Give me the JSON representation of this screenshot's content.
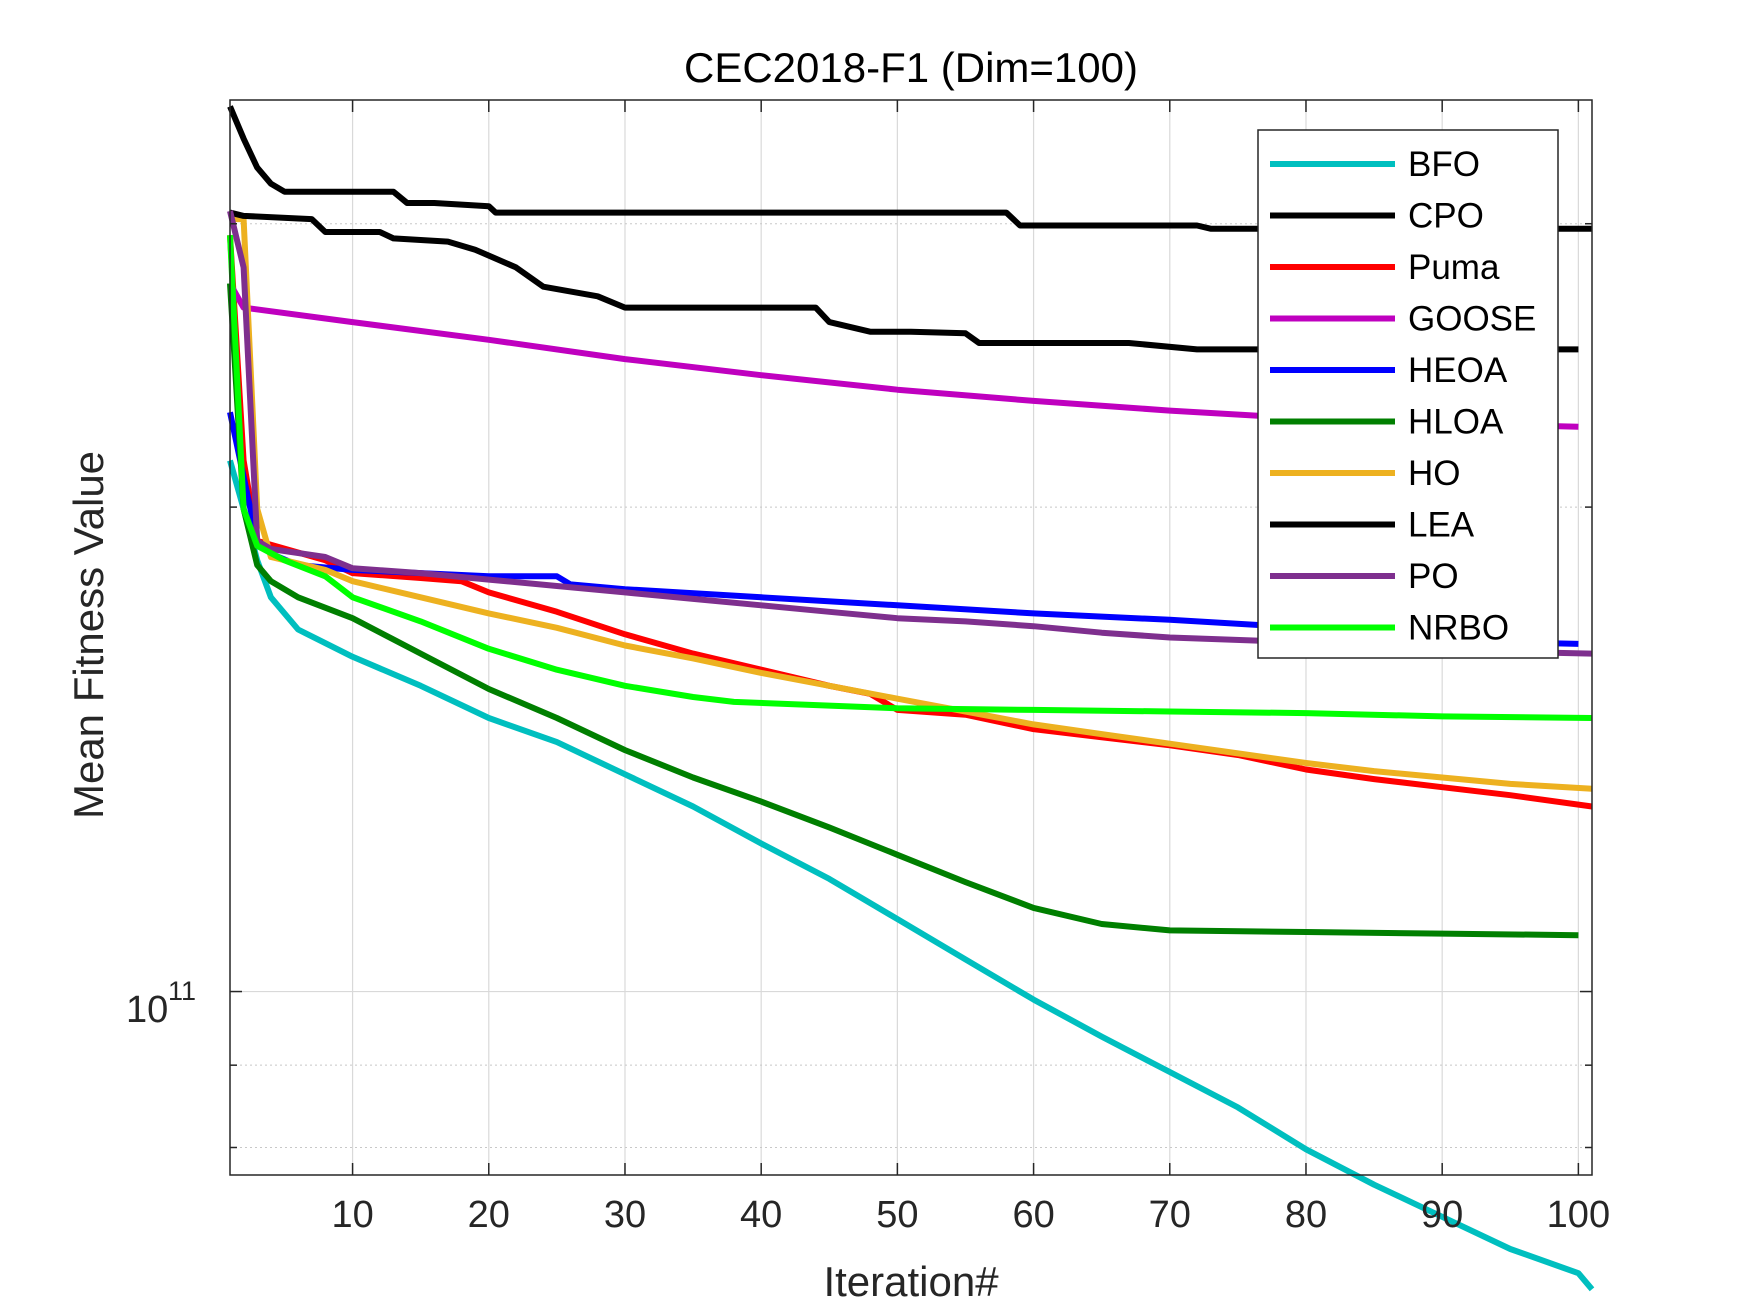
{
  "chart_data": {
    "type": "line",
    "title": "CEC2018-F1 (Dim=100)",
    "xlabel": "Iteration#",
    "ylabel": "Mean Fitness Value",
    "yscale": "log",
    "xlim": [
      1,
      101
    ],
    "ylim_log10": [
      10.886,
      11.554
    ],
    "x_ticks": [
      10,
      20,
      30,
      40,
      50,
      60,
      70,
      80,
      90,
      100
    ],
    "x_tick_labels": [
      "10",
      "20",
      "30",
      "40",
      "50",
      "60",
      "70",
      "80",
      "90",
      "100"
    ],
    "y_tick_base": "10",
    "y_tick_exponent": "11",
    "grid": true,
    "legend_position": "top-right",
    "series": [
      {
        "name": "BFO",
        "color": "#00BFBF",
        "points": [
          [
            1,
            11.33
          ],
          [
            2,
            11.3
          ],
          [
            3,
            11.268
          ],
          [
            4,
            11.245
          ],
          [
            6,
            11.225
          ],
          [
            10,
            11.208
          ],
          [
            15,
            11.19
          ],
          [
            20,
            11.17
          ],
          [
            25,
            11.155
          ],
          [
            30,
            11.135
          ],
          [
            35,
            11.115
          ],
          [
            40,
            11.092
          ],
          [
            45,
            11.07
          ],
          [
            50,
            11.045
          ],
          [
            55,
            11.02
          ],
          [
            60,
            10.995
          ],
          [
            65,
            10.972
          ],
          [
            70,
            10.95
          ],
          [
            75,
            10.928
          ],
          [
            80,
            10.902
          ],
          [
            85,
            10.88
          ],
          [
            90,
            10.86
          ],
          [
            95,
            10.84
          ],
          [
            100,
            10.825
          ],
          [
            101,
            10.815
          ]
        ]
      },
      {
        "name": "CPO",
        "color": "#000000",
        "points": [
          [
            1,
            11.55
          ],
          [
            2,
            11.53
          ],
          [
            3,
            11.512
          ],
          [
            4,
            11.502
          ],
          [
            5,
            11.497
          ],
          [
            6,
            11.497
          ],
          [
            13,
            11.497
          ],
          [
            14,
            11.49
          ],
          [
            16,
            11.49
          ],
          [
            20,
            11.488
          ],
          [
            20.5,
            11.484
          ],
          [
            58,
            11.484
          ],
          [
            59,
            11.476
          ],
          [
            72,
            11.476
          ],
          [
            73,
            11.474
          ],
          [
            101,
            11.474
          ]
        ]
      },
      {
        "name": "Puma",
        "color": "#FF0000",
        "points": [
          [
            1,
            11.47
          ],
          [
            2,
            11.33
          ],
          [
            3,
            11.28
          ],
          [
            8,
            11.268
          ],
          [
            10,
            11.26
          ],
          [
            15,
            11.257
          ],
          [
            18,
            11.255
          ],
          [
            20,
            11.248
          ],
          [
            25,
            11.236
          ],
          [
            30,
            11.222
          ],
          [
            35,
            11.21
          ],
          [
            40,
            11.2
          ],
          [
            45,
            11.19
          ],
          [
            48,
            11.185
          ],
          [
            50,
            11.175
          ],
          [
            55,
            11.172
          ],
          [
            60,
            11.163
          ],
          [
            65,
            11.158
          ],
          [
            70,
            11.153
          ],
          [
            75,
            11.147
          ],
          [
            80,
            11.138
          ],
          [
            85,
            11.132
          ],
          [
            90,
            11.127
          ],
          [
            95,
            11.122
          ],
          [
            101,
            11.115
          ]
        ]
      },
      {
        "name": "GOOSE",
        "color": "#BF00BF",
        "points": [
          [
            1,
            11.44
          ],
          [
            2,
            11.425
          ],
          [
            10,
            11.416
          ],
          [
            20,
            11.405
          ],
          [
            30,
            11.393
          ],
          [
            40,
            11.383
          ],
          [
            50,
            11.374
          ],
          [
            60,
            11.367
          ],
          [
            70,
            11.361
          ],
          [
            80,
            11.356
          ],
          [
            90,
            11.353
          ],
          [
            100,
            11.351
          ]
        ]
      },
      {
        "name": "HEOA",
        "color": "#0000FF",
        "points": [
          [
            1,
            11.36
          ],
          [
            2,
            11.32
          ],
          [
            3,
            11.28
          ],
          [
            4,
            11.272
          ],
          [
            6,
            11.265
          ],
          [
            10,
            11.262
          ],
          [
            15,
            11.26
          ],
          [
            20,
            11.258
          ],
          [
            25,
            11.258
          ],
          [
            26,
            11.253
          ],
          [
            30,
            11.25
          ],
          [
            40,
            11.245
          ],
          [
            50,
            11.24
          ],
          [
            60,
            11.235
          ],
          [
            70,
            11.231
          ],
          [
            80,
            11.226
          ],
          [
            85,
            11.222
          ],
          [
            90,
            11.218
          ],
          [
            100,
            11.216
          ]
        ]
      },
      {
        "name": "HLOA",
        "color": "#007F00",
        "points": [
          [
            1,
            11.44
          ],
          [
            2,
            11.3
          ],
          [
            3,
            11.265
          ],
          [
            4,
            11.255
          ],
          [
            6,
            11.245
          ],
          [
            10,
            11.232
          ],
          [
            15,
            11.21
          ],
          [
            20,
            11.188
          ],
          [
            25,
            11.17
          ],
          [
            30,
            11.15
          ],
          [
            35,
            11.133
          ],
          [
            40,
            11.118
          ],
          [
            45,
            11.102
          ],
          [
            50,
            11.085
          ],
          [
            55,
            11.068
          ],
          [
            60,
            11.052
          ],
          [
            65,
            11.042
          ],
          [
            70,
            11.038
          ],
          [
            80,
            11.037
          ],
          [
            90,
            11.036
          ],
          [
            100,
            11.035
          ]
        ]
      },
      {
        "name": "HO",
        "color": "#EDB120",
        "points": [
          [
            1,
            11.48
          ],
          [
            2,
            11.48
          ],
          [
            3,
            11.3
          ],
          [
            4,
            11.27
          ],
          [
            8,
            11.262
          ],
          [
            10,
            11.255
          ],
          [
            15,
            11.245
          ],
          [
            20,
            11.235
          ],
          [
            25,
            11.226
          ],
          [
            30,
            11.215
          ],
          [
            35,
            11.207
          ],
          [
            40,
            11.198
          ],
          [
            45,
            11.19
          ],
          [
            50,
            11.182
          ],
          [
            55,
            11.174
          ],
          [
            60,
            11.166
          ],
          [
            65,
            11.16
          ],
          [
            70,
            11.154
          ],
          [
            75,
            11.148
          ],
          [
            80,
            11.142
          ],
          [
            85,
            11.137
          ],
          [
            90,
            11.133
          ],
          [
            95,
            11.129
          ],
          [
            101,
            11.126
          ]
        ]
      },
      {
        "name": "LEA",
        "color": "#000000",
        "points": [
          [
            1,
            11.484
          ],
          [
            2,
            11.482
          ],
          [
            7,
            11.48
          ],
          [
            8,
            11.472
          ],
          [
            12,
            11.472
          ],
          [
            13,
            11.468
          ],
          [
            17,
            11.466
          ],
          [
            19,
            11.461
          ],
          [
            22,
            11.45
          ],
          [
            24,
            11.438
          ],
          [
            28,
            11.432
          ],
          [
            30,
            11.425
          ],
          [
            44,
            11.425
          ],
          [
            45,
            11.416
          ],
          [
            48,
            11.41
          ],
          [
            51,
            11.41
          ],
          [
            55,
            11.409
          ],
          [
            56,
            11.403
          ],
          [
            67,
            11.403
          ],
          [
            72,
            11.399
          ],
          [
            100,
            11.399
          ]
        ]
      },
      {
        "name": "PO",
        "color": "#7E2F8E",
        "points": [
          [
            1,
            11.485
          ],
          [
            2,
            11.45
          ],
          [
            3,
            11.28
          ],
          [
            4,
            11.275
          ],
          [
            8,
            11.27
          ],
          [
            10,
            11.263
          ],
          [
            15,
            11.26
          ],
          [
            20,
            11.256
          ],
          [
            25,
            11.252
          ],
          [
            30,
            11.248
          ],
          [
            35,
            11.244
          ],
          [
            40,
            11.24
          ],
          [
            45,
            11.236
          ],
          [
            50,
            11.232
          ],
          [
            55,
            11.23
          ],
          [
            60,
            11.227
          ],
          [
            65,
            11.223
          ],
          [
            70,
            11.22
          ],
          [
            80,
            11.217
          ],
          [
            85,
            11.214
          ],
          [
            90,
            11.212
          ],
          [
            101,
            11.21
          ]
        ]
      },
      {
        "name": "NRBO",
        "color": "#00FF00",
        "points": [
          [
            1,
            11.47
          ],
          [
            2,
            11.3
          ],
          [
            3,
            11.277
          ],
          [
            5,
            11.268
          ],
          [
            8,
            11.258
          ],
          [
            10,
            11.245
          ],
          [
            15,
            11.23
          ],
          [
            20,
            11.213
          ],
          [
            25,
            11.2
          ],
          [
            30,
            11.19
          ],
          [
            35,
            11.183
          ],
          [
            38,
            11.18
          ],
          [
            50,
            11.176
          ],
          [
            60,
            11.175
          ],
          [
            70,
            11.174
          ],
          [
            80,
            11.173
          ],
          [
            90,
            11.171
          ],
          [
            101,
            11.17
          ]
        ]
      }
    ]
  }
}
